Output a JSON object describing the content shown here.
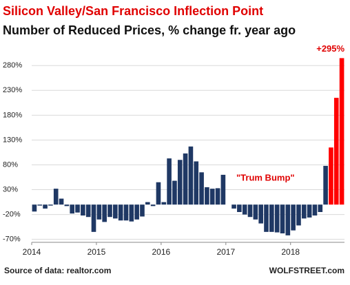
{
  "chart_data": {
    "type": "bar",
    "title": "Silicon Valley/San Francisco Inflection Point",
    "subtitle": "Number of Reduced Prices, % change fr. year ago",
    "annotation": "\"Trum Bump\"",
    "source": "Source of data: realtor.com",
    "credit": "WOLFSTREET.com",
    "categories": [
      "2014",
      null,
      null,
      null,
      null,
      null,
      null,
      null,
      null,
      null,
      null,
      null,
      "2015",
      null,
      null,
      null,
      null,
      null,
      null,
      null,
      null,
      null,
      null,
      null,
      "2016",
      null,
      null,
      null,
      null,
      null,
      null,
      null,
      null,
      null,
      null,
      null,
      "2017",
      null,
      null,
      null,
      null,
      null,
      null,
      null,
      null,
      null,
      null,
      null,
      "2018",
      null,
      null,
      null,
      null,
      null,
      null,
      null,
      null,
      null
    ],
    "values": [
      -14,
      -2,
      -8,
      -2,
      32,
      12,
      -3,
      -18,
      -16,
      -22,
      -25,
      -55,
      -30,
      -35,
      -25,
      -28,
      -32,
      -32,
      -34,
      -30,
      -24,
      5,
      -3,
      45,
      5,
      93,
      48,
      90,
      103,
      117,
      87,
      65,
      35,
      32,
      33,
      60,
      0,
      -8,
      -15,
      -20,
      -25,
      -30,
      -38,
      -55,
      -55,
      -56,
      -58,
      -62,
      -52,
      -42,
      -28,
      -26,
      -22,
      -15,
      78,
      115,
      215,
      295
    ],
    "value_labels": [
      null,
      null,
      null,
      null,
      null,
      null,
      null,
      null,
      null,
      null,
      null,
      null,
      null,
      null,
      null,
      null,
      null,
      null,
      null,
      null,
      null,
      null,
      null,
      null,
      null,
      null,
      null,
      null,
      null,
      null,
      null,
      null,
      null,
      null,
      null,
      null,
      null,
      null,
      null,
      null,
      null,
      null,
      null,
      null,
      null,
      null,
      null,
      null,
      null,
      null,
      null,
      null,
      null,
      null,
      null,
      null,
      null,
      "+295%"
    ],
    "colors": [
      "#1f3864",
      "#1f3864",
      "#1f3864",
      "#1f3864",
      "#1f3864",
      "#1f3864",
      "#1f3864",
      "#1f3864",
      "#1f3864",
      "#1f3864",
      "#1f3864",
      "#1f3864",
      "#1f3864",
      "#1f3864",
      "#1f3864",
      "#1f3864",
      "#1f3864",
      "#1f3864",
      "#1f3864",
      "#1f3864",
      "#1f3864",
      "#1f3864",
      "#1f3864",
      "#1f3864",
      "#1f3864",
      "#1f3864",
      "#1f3864",
      "#1f3864",
      "#1f3864",
      "#1f3864",
      "#1f3864",
      "#1f3864",
      "#1f3864",
      "#1f3864",
      "#1f3864",
      "#1f3864",
      "#1f3864",
      "#1f3864",
      "#1f3864",
      "#1f3864",
      "#1f3864",
      "#1f3864",
      "#1f3864",
      "#1f3864",
      "#1f3864",
      "#1f3864",
      "#1f3864",
      "#1f3864",
      "#1f3864",
      "#1f3864",
      "#1f3864",
      "#1f3864",
      "#1f3864",
      "#1f3864",
      "#1f3864",
      "#ff0000",
      "#ff0000",
      "#ff0000"
    ],
    "ylim": [
      -76,
      315
    ],
    "yticks": [
      {
        "value": -70,
        "label": "-70%"
      },
      {
        "value": -20,
        "label": "-20%"
      },
      {
        "value": 30,
        "label": "30%"
      },
      {
        "value": 80,
        "label": "80%"
      },
      {
        "value": 130,
        "label": "130%"
      },
      {
        "value": 180,
        "label": "180%"
      },
      {
        "value": 230,
        "label": "230%"
      },
      {
        "value": 280,
        "label": "280%"
      }
    ],
    "grid": true
  }
}
